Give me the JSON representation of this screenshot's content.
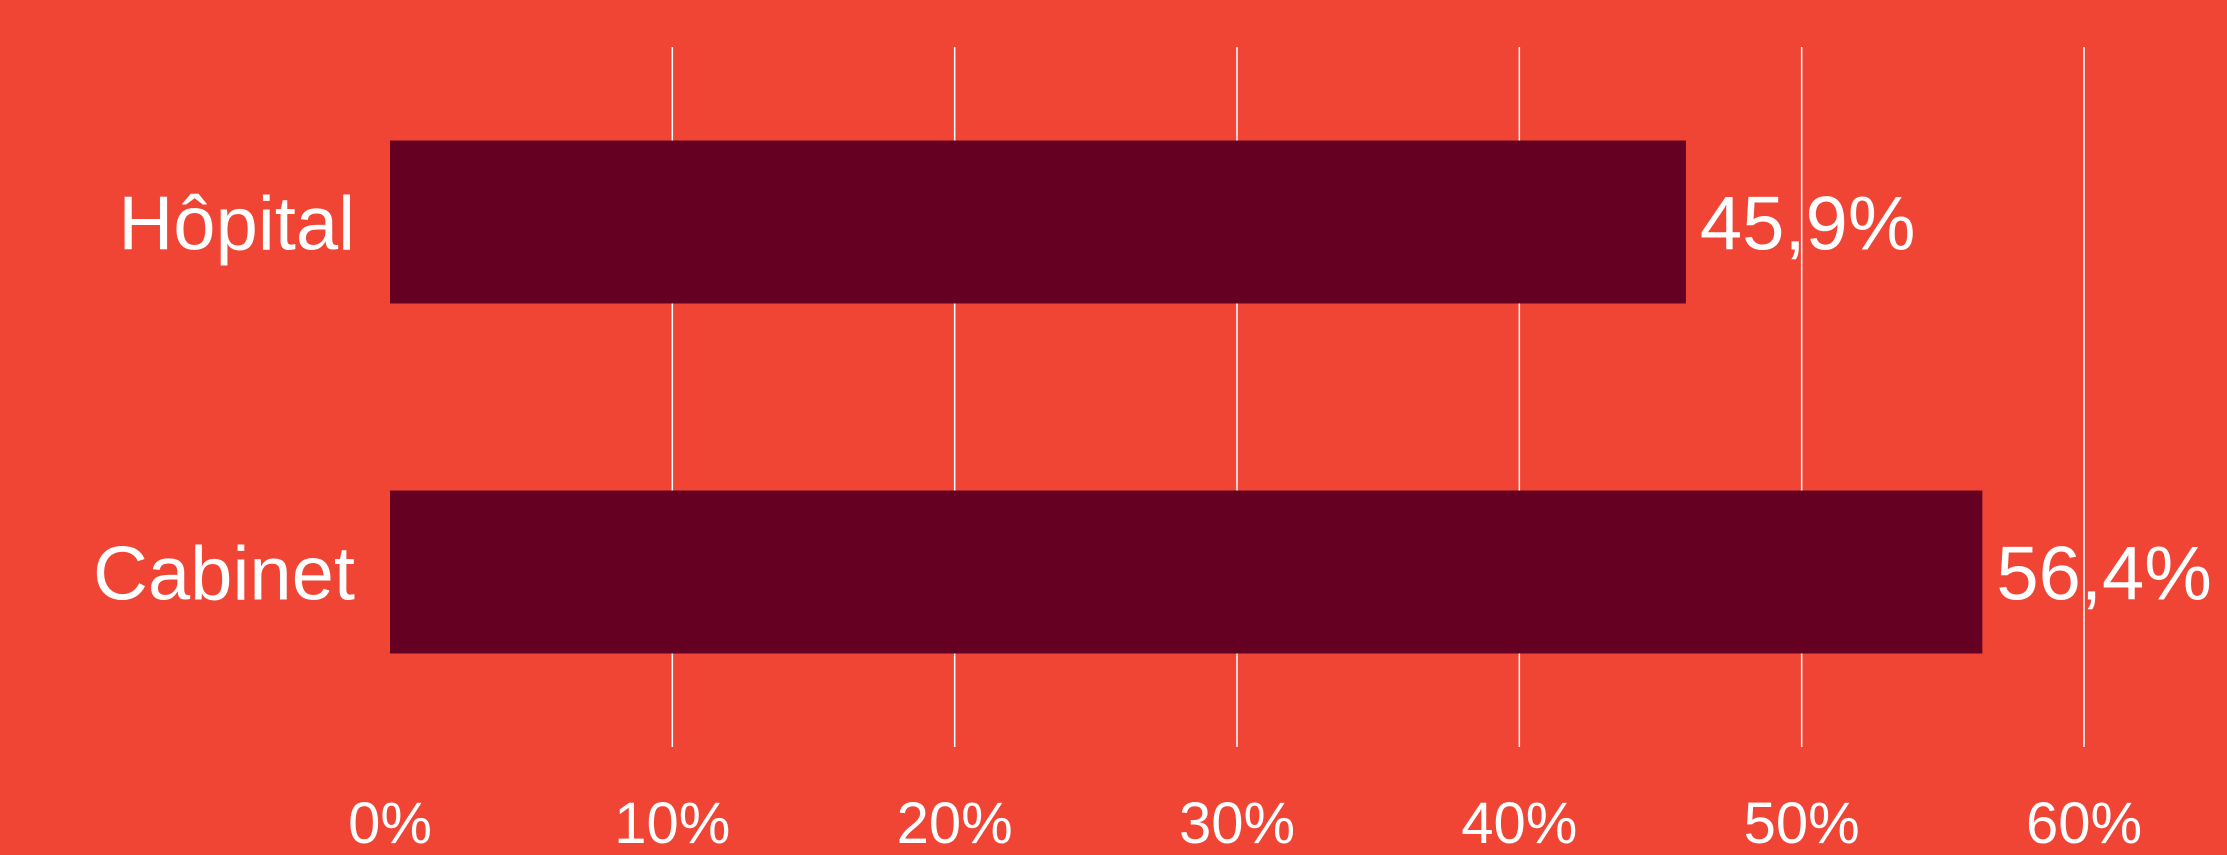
{
  "chart_data": {
    "type": "bar",
    "orientation": "horizontal",
    "categories": [
      "Hôpital",
      "Cabinet"
    ],
    "values": [
      45.9,
      56.4
    ],
    "value_labels": [
      "45,9%",
      "56,4%"
    ],
    "x_ticks": [
      "0%",
      "10%",
      "20%",
      "30%",
      "40%",
      "50%",
      "60%"
    ],
    "xlim": [
      0,
      60
    ],
    "grid": true,
    "title": "",
    "xlabel": "",
    "ylabel": ""
  },
  "colors": {
    "background": "#F04535",
    "bar": "#660022",
    "grid": "#FFFFFF",
    "text": "#FFFFFF"
  }
}
